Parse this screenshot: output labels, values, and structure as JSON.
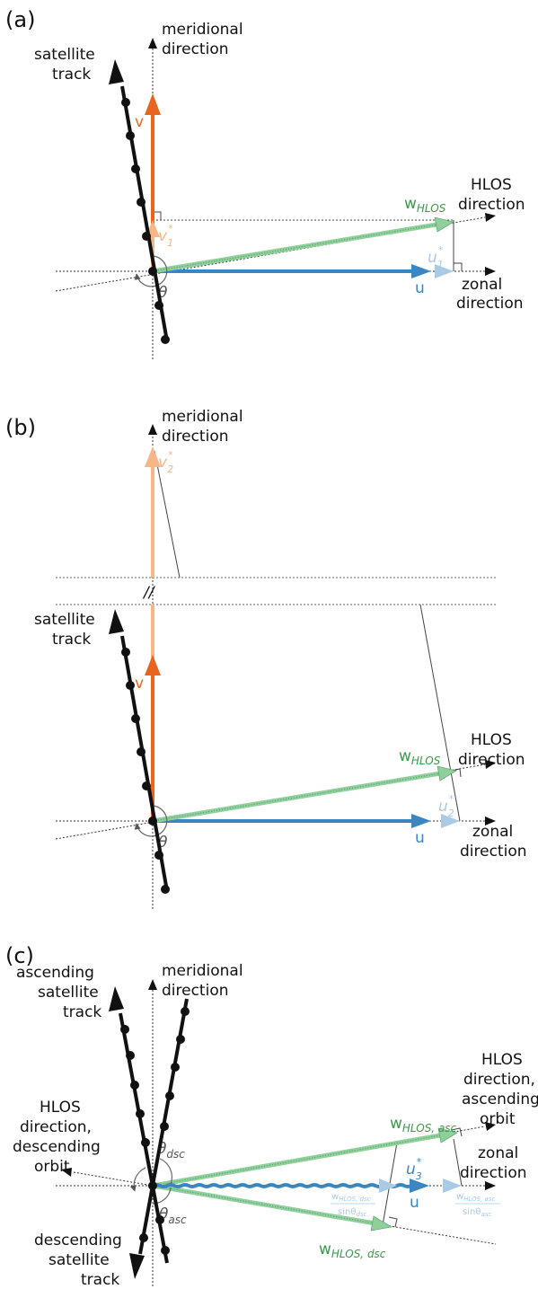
{
  "colors": {
    "track": "#111111",
    "meridional_arrow": "#e8641f",
    "meridional_light": "#f6b687",
    "zonal_arrow": "#3b86c1",
    "zonal_light": "#a9cbe6",
    "hlos": "#8fcf9c",
    "hlos_edge": "#4a9a5a",
    "label_green": "#3a9a4a",
    "label_gray": "#555555",
    "aux_line": "#555555"
  },
  "panels": {
    "a": {
      "panel_label": "(a)",
      "meridional_line1": "meridional",
      "meridional_line2": "direction",
      "track_line1": "satellite",
      "track_line2": "track",
      "v_label": "v",
      "v1_label": "v",
      "v1_sub": "1",
      "v1_sup": "*",
      "whlos_main": "w",
      "whlos_sub": "HLOS",
      "hlos_line1": "HLOS",
      "hlos_line2": "direction",
      "u1_label": "u",
      "u1_sub": "1",
      "u1_sup": "*",
      "u_label": "u",
      "zonal_line1": "zonal",
      "zonal_line2": "direction",
      "theta": "θ"
    },
    "b": {
      "panel_label": "(b)",
      "meridional_line1": "meridional",
      "meridional_line2": "direction",
      "v2_label": "v",
      "v2_sub": "2",
      "v2_sup": "*",
      "break_mark": "//",
      "track_line1": "satellite",
      "track_line2": "track",
      "v_label": "v",
      "whlos_main": "w",
      "whlos_sub": "HLOS",
      "hlos_line1": "HLOS",
      "hlos_line2": "direction",
      "u2_label": "u",
      "u2_sub": "2",
      "u2_sup": "*",
      "u_label": "u",
      "zonal_line1": "zonal",
      "zonal_line2": "direction",
      "theta": "θ"
    },
    "c": {
      "panel_label": "(c)",
      "meridional_line1": "meridional",
      "meridional_line2": "direction",
      "asc_track_line1": "ascending",
      "asc_track_line2": "satellite",
      "asc_track_line3": "track",
      "hlos_asc_line1": "HLOS",
      "hlos_asc_line2": "direction,",
      "hlos_asc_line3": "ascending",
      "hlos_asc_line4": "orbit",
      "hlos_dsc_line1": "HLOS",
      "hlos_dsc_line2": "direction,",
      "hlos_dsc_line3": "descending",
      "hlos_dsc_line4": "orbit",
      "theta_dsc_main": "θ",
      "theta_dsc_sub": "dsc",
      "theta_asc_main": "θ",
      "theta_asc_sub": "asc",
      "whlos_asc_main": "w",
      "whlos_asc_sub": "HLOS, asc",
      "whlos_dsc_main": "w",
      "whlos_dsc_sub": "HLOS, dsc",
      "zonal_line1": "zonal",
      "zonal_line2": "direction",
      "u3_label": "u",
      "u3_sub": "3",
      "u3_sup": "*",
      "u_label": "u",
      "frac_dsc_num_main": "w",
      "frac_dsc_num_sub": "HLOS, dsc",
      "frac_dsc_den_main": "sinθ",
      "frac_dsc_den_sub": "dsc",
      "frac_asc_num_main": "w",
      "frac_asc_num_sub": "HLOS, asc",
      "frac_asc_den_main": "sinθ",
      "frac_asc_den_sub": "asc",
      "desc_track_line1": "descending",
      "desc_track_line2": "satellite",
      "desc_track_line3": "track"
    }
  }
}
